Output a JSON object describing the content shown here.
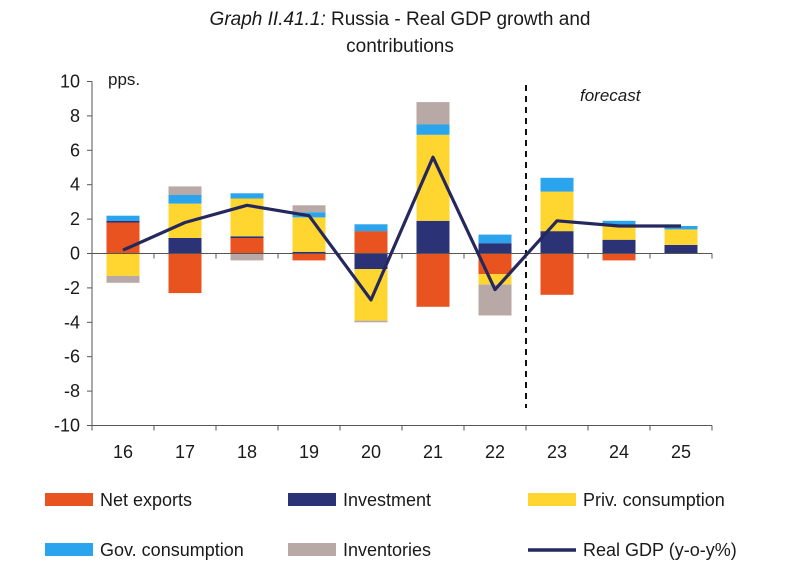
{
  "title": {
    "prefix": "Graph II.41.1:",
    "line1": "Russia - Real GDP growth and",
    "line2": "contributions"
  },
  "colors": {
    "net_exports": "#e8531f",
    "investment": "#2b3275",
    "priv_consumption": "#ffd530",
    "gov_consumption": "#2aa4ec",
    "inventories": "#b8a9a6",
    "real_gdp": "#25285c",
    "axis": "#555555",
    "forecast_line": "#111111"
  },
  "chart_data": {
    "type": "bar",
    "stacked": true,
    "categories": [
      "16",
      "17",
      "18",
      "19",
      "20",
      "21",
      "22",
      "23",
      "24",
      "25"
    ],
    "ylabel": "pps.",
    "ylim": [
      -10,
      10
    ],
    "yticks": [
      "10",
      "8",
      "6",
      "4",
      "2",
      "0",
      "-2",
      "-4",
      "-6",
      "-8",
      "-10"
    ],
    "annotations": [
      "forecast"
    ],
    "forecast_divider_between": [
      "22",
      "23"
    ],
    "grid": false,
    "legend_position": "bottom",
    "series": [
      {
        "name": "Net exports",
        "key": "net_exports",
        "values": [
          1.8,
          -2.3,
          0.9,
          -0.4,
          1.3,
          -3.1,
          -1.2,
          -2.4,
          -0.4,
          0.0
        ]
      },
      {
        "name": "Investment",
        "key": "investment",
        "values": [
          0.1,
          0.9,
          0.1,
          0.1,
          -0.9,
          1.9,
          0.6,
          1.3,
          0.8,
          0.5
        ]
      },
      {
        "name": "Priv. consumption",
        "key": "priv_consumption",
        "values": [
          -1.3,
          2.0,
          2.2,
          2.0,
          -3.0,
          5.0,
          -0.6,
          2.3,
          0.8,
          0.9
        ]
      },
      {
        "name": "Gov. consumption",
        "key": "gov_consumption",
        "values": [
          0.3,
          0.5,
          0.3,
          0.3,
          0.4,
          0.6,
          0.5,
          0.8,
          0.3,
          0.2
        ]
      },
      {
        "name": "Inventories",
        "key": "inventories",
        "values": [
          -0.4,
          0.5,
          -0.4,
          0.4,
          -0.1,
          1.3,
          -1.8,
          0.0,
          0.0,
          0.0
        ]
      }
    ],
    "line_series": {
      "name": "Real GDP (y-o-y%)",
      "key": "real_gdp",
      "values": [
        0.2,
        1.8,
        2.8,
        2.2,
        -2.7,
        5.6,
        -2.1,
        1.9,
        1.6,
        1.6
      ]
    }
  }
}
